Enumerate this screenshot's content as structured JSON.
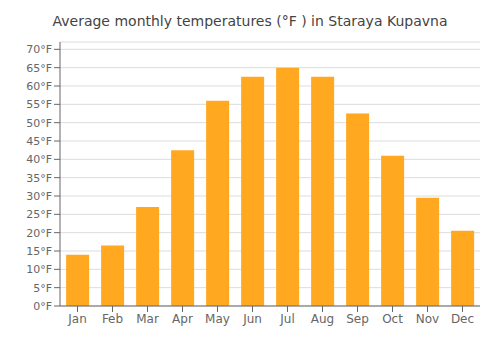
{
  "chart_data": {
    "type": "bar",
    "title": "Average monthly temperatures (°F ) in Staraya Kupavna",
    "categories": [
      "Jan",
      "Feb",
      "Mar",
      "Apr",
      "May",
      "Jun",
      "Jul",
      "Aug",
      "Sep",
      "Oct",
      "Nov",
      "Dec"
    ],
    "values": [
      14,
      16.5,
      27,
      42.5,
      56,
      62.5,
      65,
      62.5,
      52.5,
      41,
      29.5,
      20.5
    ],
    "color": "#FFA820",
    "ylim": [
      0,
      72
    ],
    "yticks": [
      {
        "value": 0,
        "label": "0°F"
      },
      {
        "value": 5,
        "label": "5°F"
      },
      {
        "value": 10,
        "label": "10°F"
      },
      {
        "value": 15,
        "label": "15°F"
      },
      {
        "value": 20,
        "label": "20°F"
      },
      {
        "value": 25,
        "label": "25°F"
      },
      {
        "value": 30,
        "label": "30°F"
      },
      {
        "value": 35,
        "label": "35°F"
      },
      {
        "value": 40,
        "label": "40°F"
      },
      {
        "value": 45,
        "label": "45°F"
      },
      {
        "value": 50,
        "label": "50°F"
      },
      {
        "value": 55,
        "label": "55°F"
      },
      {
        "value": 60,
        "label": "60°F"
      },
      {
        "value": 65,
        "label": "65°F"
      },
      {
        "value": 70,
        "label": "70°F"
      }
    ],
    "grid": true
  }
}
